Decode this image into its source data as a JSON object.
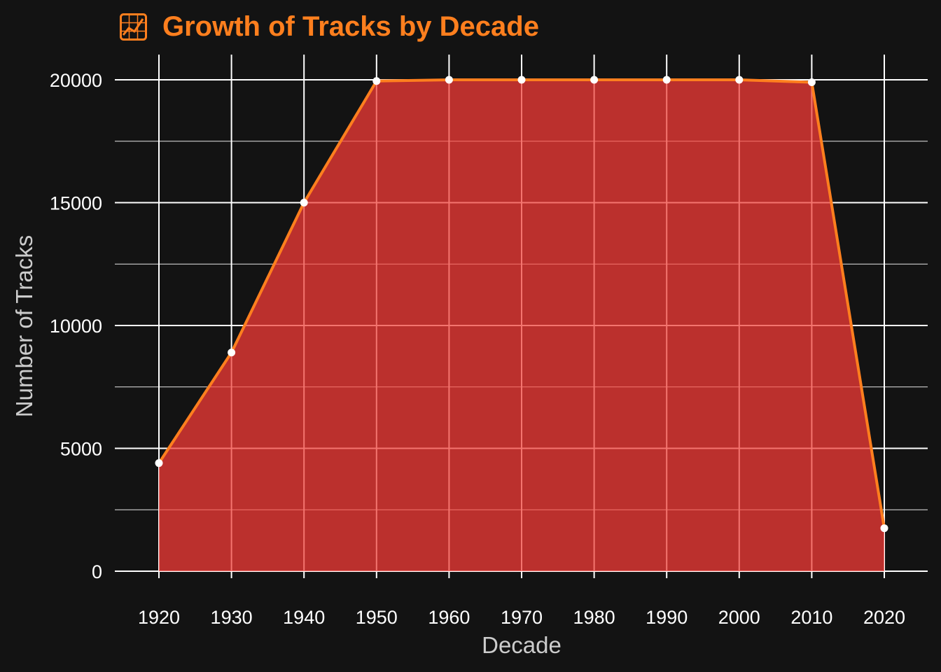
{
  "colors": {
    "background": "#131313",
    "accent": "#ff7f1e",
    "fill": "#bb302d",
    "grid_over_fill": "#f4756f",
    "grid": "#ffffff",
    "text": "#ffffff",
    "axis_title": "#cccccc",
    "marker": "#ffffff"
  },
  "title_icon": "chart-increasing-icon",
  "chart_data": {
    "type": "area",
    "title": "Growth of Tracks by Decade",
    "xlabel": "Decade",
    "ylabel": "Number of Tracks",
    "x": [
      1920,
      1930,
      1940,
      1950,
      1960,
      1970,
      1980,
      1990,
      2000,
      2010,
      2020
    ],
    "series": [
      {
        "name": "Number of Tracks",
        "values": [
          4400,
          8900,
          15000,
          19950,
          20000,
          20000,
          20000,
          20000,
          20000,
          19900,
          1750
        ]
      }
    ],
    "xticks": [
      "1920",
      "1930",
      "1940",
      "1950",
      "1960",
      "1970",
      "1980",
      "1990",
      "2000",
      "2010",
      "2020"
    ],
    "yticks": [
      "0",
      "5000",
      "10000",
      "15000",
      "20000"
    ],
    "yticks_values": [
      0,
      5000,
      10000,
      15000,
      20000
    ],
    "y_minor_values": [
      2500,
      7500,
      12500,
      17500
    ],
    "ylim": [
      0,
      20000
    ],
    "xlim": [
      1920,
      2020
    ],
    "grid": true,
    "legend": "none"
  }
}
